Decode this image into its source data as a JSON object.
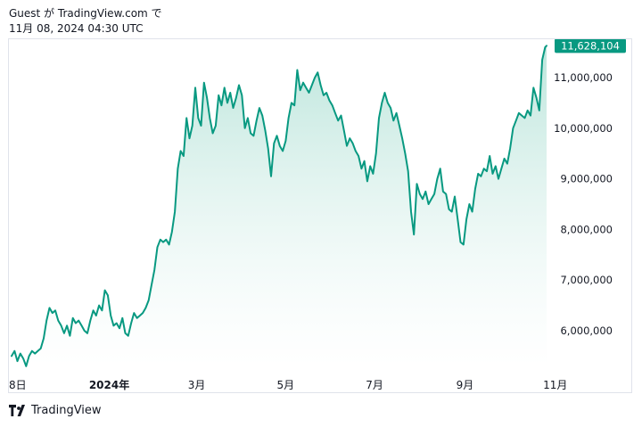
{
  "header": {
    "line1": "Guest が TradingView.com で",
    "line2": "11月 08, 2024 04:30 UTC"
  },
  "brand": {
    "name": "TradingView"
  },
  "colors": {
    "line": "#089981",
    "area_top": "#b9e4da",
    "area_bottom": "#ffffff",
    "badge_bg": "#089981",
    "badge_text": "#ffffff",
    "axis_text": "#131722"
  },
  "chart_data": {
    "type": "area",
    "title": "",
    "xlabel": "",
    "ylabel": "",
    "ylim": [
      5200000,
      11900000
    ],
    "grid": false,
    "y_ticks": [
      6000000,
      7000000,
      8000000,
      9000000,
      10000000,
      11000000
    ],
    "y_tick_labels": [
      "6,000,000",
      "7,000,000",
      "8,000,000",
      "9,000,000",
      "10,000,000",
      "11,000,000"
    ],
    "x_tick_labels": [
      {
        "label": "8日",
        "x": 0,
        "bold": false
      },
      {
        "label": "2024年",
        "x": 67,
        "bold": true
      },
      {
        "label": "3月",
        "x": 127,
        "bold": false
      },
      {
        "label": "5月",
        "x": 188,
        "bold": false
      },
      {
        "label": "7月",
        "x": 249,
        "bold": false
      },
      {
        "label": "9月",
        "x": 311,
        "bold": false
      },
      {
        "label": "11月",
        "x": 373,
        "bold": false
      }
    ],
    "last_value": 11628104,
    "last_value_label": "11,628,104",
    "x_range": [
      0,
      367
    ],
    "points": [
      [
        0,
        5500000
      ],
      [
        2,
        5600000
      ],
      [
        4,
        5400000
      ],
      [
        6,
        5550000
      ],
      [
        8,
        5450000
      ],
      [
        10,
        5300000
      ],
      [
        12,
        5500000
      ],
      [
        14,
        5600000
      ],
      [
        16,
        5550000
      ],
      [
        18,
        5600000
      ],
      [
        20,
        5650000
      ],
      [
        22,
        5850000
      ],
      [
        24,
        6200000
      ],
      [
        26,
        6450000
      ],
      [
        28,
        6350000
      ],
      [
        30,
        6400000
      ],
      [
        32,
        6200000
      ],
      [
        34,
        6100000
      ],
      [
        36,
        5950000
      ],
      [
        38,
        6100000
      ],
      [
        40,
        5900000
      ],
      [
        42,
        6250000
      ],
      [
        44,
        6150000
      ],
      [
        46,
        6200000
      ],
      [
        48,
        6100000
      ],
      [
        50,
        6000000
      ],
      [
        52,
        5950000
      ],
      [
        54,
        6200000
      ],
      [
        56,
        6400000
      ],
      [
        58,
        6300000
      ],
      [
        60,
        6500000
      ],
      [
        62,
        6400000
      ],
      [
        64,
        6800000
      ],
      [
        66,
        6700000
      ],
      [
        68,
        6300000
      ],
      [
        70,
        6100000
      ],
      [
        72,
        6150000
      ],
      [
        74,
        6050000
      ],
      [
        76,
        6250000
      ],
      [
        78,
        5950000
      ],
      [
        80,
        5900000
      ],
      [
        82,
        6150000
      ],
      [
        84,
        6350000
      ],
      [
        86,
        6250000
      ],
      [
        88,
        6300000
      ],
      [
        90,
        6350000
      ],
      [
        92,
        6450000
      ],
      [
        94,
        6600000
      ],
      [
        96,
        6900000
      ],
      [
        98,
        7200000
      ],
      [
        100,
        7650000
      ],
      [
        102,
        7800000
      ],
      [
        104,
        7750000
      ],
      [
        106,
        7800000
      ],
      [
        108,
        7700000
      ],
      [
        110,
        7950000
      ],
      [
        112,
        8350000
      ],
      [
        114,
        9200000
      ],
      [
        116,
        9550000
      ],
      [
        118,
        9450000
      ],
      [
        120,
        10200000
      ],
      [
        122,
        9800000
      ],
      [
        124,
        10050000
      ],
      [
        126,
        10800000
      ],
      [
        128,
        10200000
      ],
      [
        130,
        10050000
      ],
      [
        132,
        10900000
      ],
      [
        134,
        10600000
      ],
      [
        136,
        10200000
      ],
      [
        138,
        9900000
      ],
      [
        140,
        10050000
      ],
      [
        142,
        10650000
      ],
      [
        144,
        10450000
      ],
      [
        146,
        10800000
      ],
      [
        148,
        10500000
      ],
      [
        150,
        10700000
      ],
      [
        152,
        10400000
      ],
      [
        154,
        10600000
      ],
      [
        156,
        10850000
      ],
      [
        158,
        10650000
      ],
      [
        160,
        10000000
      ],
      [
        162,
        10200000
      ],
      [
        164,
        9900000
      ],
      [
        166,
        9850000
      ],
      [
        168,
        10150000
      ],
      [
        170,
        10400000
      ],
      [
        172,
        10250000
      ],
      [
        174,
        9950000
      ],
      [
        176,
        9600000
      ],
      [
        178,
        9050000
      ],
      [
        180,
        9700000
      ],
      [
        182,
        9850000
      ],
      [
        184,
        9650000
      ],
      [
        186,
        9550000
      ],
      [
        188,
        9750000
      ],
      [
        190,
        10200000
      ],
      [
        192,
        10500000
      ],
      [
        194,
        10450000
      ],
      [
        196,
        11150000
      ],
      [
        198,
        10750000
      ],
      [
        200,
        10900000
      ],
      [
        202,
        10800000
      ],
      [
        204,
        10700000
      ],
      [
        206,
        10850000
      ],
      [
        208,
        11000000
      ],
      [
        210,
        11100000
      ],
      [
        212,
        10850000
      ],
      [
        214,
        10650000
      ],
      [
        216,
        10700000
      ],
      [
        218,
        10550000
      ],
      [
        220,
        10450000
      ],
      [
        222,
        10300000
      ],
      [
        224,
        10150000
      ],
      [
        226,
        10250000
      ],
      [
        228,
        9950000
      ],
      [
        230,
        9650000
      ],
      [
        232,
        9800000
      ],
      [
        234,
        9700000
      ],
      [
        236,
        9550000
      ],
      [
        238,
        9450000
      ],
      [
        240,
        9200000
      ],
      [
        242,
        9350000
      ],
      [
        244,
        8950000
      ],
      [
        246,
        9250000
      ],
      [
        248,
        9100000
      ],
      [
        250,
        9500000
      ],
      [
        252,
        10200000
      ],
      [
        254,
        10500000
      ],
      [
        256,
        10700000
      ],
      [
        258,
        10500000
      ],
      [
        260,
        10400000
      ],
      [
        262,
        10150000
      ],
      [
        264,
        10300000
      ],
      [
        266,
        10050000
      ],
      [
        268,
        9800000
      ],
      [
        270,
        9500000
      ],
      [
        272,
        9150000
      ],
      [
        274,
        8350000
      ],
      [
        276,
        7900000
      ],
      [
        278,
        8900000
      ],
      [
        280,
        8700000
      ],
      [
        282,
        8600000
      ],
      [
        284,
        8750000
      ],
      [
        286,
        8500000
      ],
      [
        288,
        8600000
      ],
      [
        290,
        8700000
      ],
      [
        292,
        9000000
      ],
      [
        294,
        9200000
      ],
      [
        296,
        8750000
      ],
      [
        298,
        8700000
      ],
      [
        300,
        8400000
      ],
      [
        302,
        8350000
      ],
      [
        304,
        8650000
      ],
      [
        306,
        8200000
      ],
      [
        308,
        7750000
      ],
      [
        310,
        7700000
      ],
      [
        312,
        8200000
      ],
      [
        314,
        8500000
      ],
      [
        316,
        8350000
      ],
      [
        318,
        8800000
      ],
      [
        320,
        9100000
      ],
      [
        322,
        9050000
      ],
      [
        324,
        9200000
      ],
      [
        326,
        9150000
      ],
      [
        328,
        9450000
      ],
      [
        330,
        9100000
      ],
      [
        332,
        9250000
      ],
      [
        334,
        9000000
      ],
      [
        336,
        9200000
      ],
      [
        338,
        9400000
      ],
      [
        340,
        9300000
      ],
      [
        342,
        9600000
      ],
      [
        344,
        10000000
      ],
      [
        346,
        10150000
      ],
      [
        348,
        10300000
      ],
      [
        350,
        10250000
      ],
      [
        352,
        10200000
      ],
      [
        354,
        10350000
      ],
      [
        356,
        10250000
      ],
      [
        358,
        10800000
      ],
      [
        360,
        10600000
      ],
      [
        362,
        10350000
      ],
      [
        364,
        11350000
      ],
      [
        366,
        11600000
      ],
      [
        367,
        11628104
      ]
    ]
  }
}
